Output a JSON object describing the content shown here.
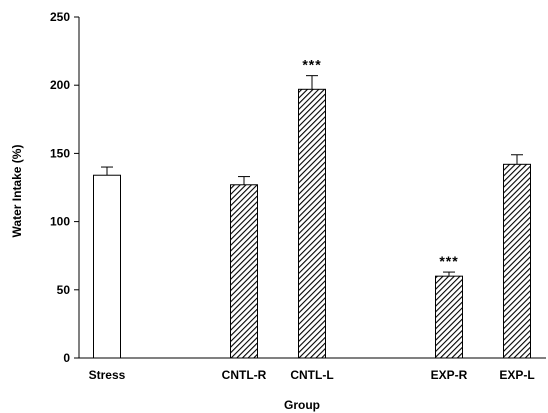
{
  "chart_data": {
    "type": "bar",
    "xlabel": "Group",
    "ylabel": "Water Intake (%)",
    "ylim": [
      0,
      250
    ],
    "yticks": [
      0,
      50,
      100,
      150,
      200,
      250
    ],
    "grid": false,
    "categories": [
      "Stress",
      "CNTL-R",
      "CNTL-L",
      "EXP-R",
      "EXP-L"
    ],
    "values": [
      134,
      127,
      197,
      60,
      142
    ],
    "errors": [
      6,
      6,
      10,
      3,
      7
    ],
    "annotations": [
      "",
      "",
      "***",
      "***",
      ""
    ],
    "fills": [
      "plain",
      "hatch",
      "hatch",
      "hatch",
      "hatch"
    ],
    "colors": {
      "bar_plain": "#ffffff",
      "hatch_line": "#000000",
      "axis": "#000000"
    }
  }
}
